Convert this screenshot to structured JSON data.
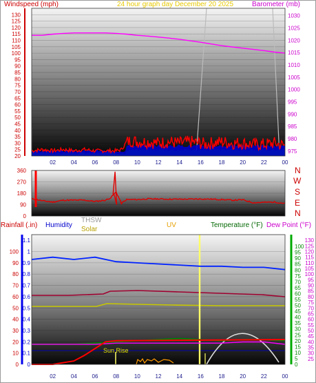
{
  "header": {
    "windspeed": "Windspeed (mph)",
    "date_line": "24 hour graph day   December 20 2025",
    "barometer": "Barometer (mb)"
  },
  "lower_header": {
    "rainfall": "Rainfall (.in)",
    "humidity": "Humidity",
    "thsw": "THSW",
    "solar": "Solar",
    "uv": "UV",
    "temperature": "Temperature (°F)",
    "dewpoint": "Dew Point (°F)"
  },
  "compass": [
    "N",
    "W",
    "S",
    "E",
    "N"
  ],
  "annotations": {
    "sunrise": "Sun Rise"
  },
  "colors": {
    "windspeed": "#ff0000",
    "barometer": "#ff00ff",
    "gust_green": "#00a000",
    "gust_blue": "#0000cc",
    "direction": "#e00000",
    "humidity": "#0022ff",
    "temperature": "#008800",
    "dewpoint": "#ff00ff",
    "rainfall": "#ff0000",
    "solar": "#c8c800",
    "thsw": "#aaaaaa",
    "uv": "#ffd000",
    "maroon": "#a00030"
  },
  "chart_data": [
    {
      "type": "line",
      "title": "24 hour graph day   December 20 2025",
      "x_ticks": [
        "02",
        "04",
        "06",
        "08",
        "10",
        "12",
        "14",
        "16",
        "18",
        "20",
        "22",
        "00"
      ],
      "y_left_label": "Windspeed (mph)",
      "y_left_ticks": [
        20,
        25,
        30,
        35,
        40,
        45,
        50,
        55,
        60,
        65,
        70,
        75,
        80,
        85,
        90,
        95,
        100,
        105,
        110,
        115,
        120,
        125,
        130
      ],
      "y_left_range": [
        20,
        135
      ],
      "y_right_label": "Barometer (mb)",
      "y_right_ticks": [
        975,
        980,
        985,
        990,
        995,
        1000,
        1005,
        1010,
        1015,
        1020,
        1025,
        1030
      ],
      "y_right_range": [
        973,
        1033
      ],
      "series": [
        {
          "name": "Windspeed (mph)",
          "axis": "left",
          "x": [
            0,
            1,
            2,
            3,
            4,
            5,
            6,
            7,
            8,
            8.5,
            9,
            9.5,
            10,
            11,
            12,
            13,
            14,
            15,
            16,
            16.5,
            17,
            18,
            19,
            20,
            21,
            22,
            23,
            24
          ],
          "y": [
            24,
            25,
            24,
            25,
            24,
            25,
            24,
            24,
            24,
            25,
            31,
            32,
            31,
            31,
            30,
            31,
            30,
            31,
            30,
            29,
            30,
            31,
            30,
            30,
            29,
            29,
            30,
            28
          ]
        },
        {
          "name": "Barometer (mb)",
          "axis": "right",
          "x": [
            0,
            1,
            2,
            3,
            4,
            5,
            6,
            7,
            8,
            9,
            10,
            11,
            12,
            13,
            14,
            15,
            16,
            17,
            18,
            19,
            20,
            21,
            22,
            23,
            24
          ],
          "y": [
            1022,
            1022,
            1022.5,
            1022.8,
            1023,
            1023,
            1023,
            1023,
            1022.8,
            1022.5,
            1022,
            1021.7,
            1021.3,
            1020.9,
            1020.4,
            1019.8,
            1019.2,
            1018.5,
            1017.8,
            1017.3,
            1016.8,
            1016.3,
            1015.8,
            1015.2,
            1014.8
          ]
        }
      ]
    },
    {
      "type": "line",
      "y_ticks": [
        0,
        90,
        180,
        270,
        360
      ],
      "y_range": [
        0,
        360
      ],
      "series": [
        {
          "name": "Wind Direction",
          "x": [
            0,
            0.5,
            1,
            2,
            3,
            4,
            5,
            6,
            7,
            7.5,
            8,
            8.5,
            9,
            10,
            11,
            12,
            13,
            14,
            15,
            16,
            17,
            18,
            19,
            20,
            21,
            22,
            23,
            24
          ],
          "y": [
            135,
            130,
            120,
            110,
            125,
            125,
            125,
            115,
            125,
            145,
            190,
            100,
            130,
            130,
            135,
            135,
            133,
            133,
            133,
            135,
            133,
            130,
            125,
            128,
            105,
            108,
            110,
            100
          ]
        }
      ]
    },
    {
      "type": "line",
      "y_left_label": "Rainfall (.in)",
      "y_left_ticks": [
        0,
        0.1,
        0.2,
        0.3,
        0.4,
        0.5,
        0.6,
        0.7,
        0.8,
        0.9,
        1
      ],
      "y_left_range": [
        0,
        1.15
      ],
      "y_left2_ticks": [
        0,
        10,
        20,
        30,
        40,
        50,
        60,
        70,
        80,
        90,
        100
      ],
      "y_left2_range": [
        0,
        115
      ],
      "y_mid_ticks": [
        0,
        0.1,
        0.2,
        0.3,
        0.4,
        0.5,
        0.6,
        0.7,
        0.8,
        0.9,
        1,
        1.1
      ],
      "y_right_label": "Temperature (°F)",
      "y_right_ticks": [
        0,
        5,
        10,
        15,
        20,
        25,
        30,
        35,
        40,
        45,
        50,
        55,
        60,
        65,
        70,
        75,
        80,
        85,
        90,
        95,
        100
      ],
      "y_right_range": [
        0,
        110
      ],
      "y_right2_ticks": [
        25,
        30,
        35,
        40,
        45,
        50,
        55,
        60,
        65,
        70,
        75,
        80,
        85,
        90,
        95,
        100,
        105,
        110,
        115,
        120,
        125,
        130
      ],
      "y_right2_range": [
        20,
        135
      ],
      "series": [
        {
          "name": "Humidity",
          "axis": "left2",
          "x": [
            0,
            2,
            4,
            6,
            8,
            10,
            12,
            14,
            16,
            18,
            20,
            22,
            24
          ],
          "y": [
            93,
            95,
            93,
            95,
            91,
            90,
            89,
            88,
            87,
            87,
            86,
            86,
            84
          ]
        },
        {
          "name": "Temperature (°F)",
          "axis": "right",
          "x": [
            0,
            2,
            4,
            6,
            8,
            10,
            12,
            14,
            16,
            18,
            20,
            22,
            24
          ],
          "y": [
            17,
            17,
            17,
            18,
            19,
            20,
            21,
            22,
            21,
            20,
            21,
            21,
            20
          ]
        },
        {
          "name": "Dew Point (°F)",
          "axis": "right",
          "x": [
            0,
            2,
            4,
            6,
            8,
            10,
            12,
            14,
            16,
            18,
            20,
            22,
            24
          ],
          "y": [
            17,
            17,
            17,
            17,
            18,
            18,
            18,
            18,
            18,
            18,
            19,
            19,
            17
          ]
        },
        {
          "name": "Rainfall (.in)",
          "axis": "left",
          "x": [
            0,
            2,
            4,
            5,
            6,
            7,
            8,
            24
          ],
          "y": [
            0,
            0,
            0.03,
            0.08,
            0.14,
            0.2,
            0.21,
            0.22
          ]
        }
      ]
    }
  ]
}
